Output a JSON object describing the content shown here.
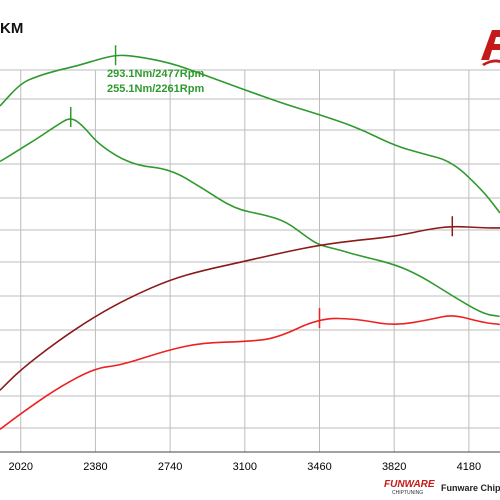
{
  "unit_label": "KM",
  "footer": {
    "company": "Funware Chip",
    "logo_word": "FUNWARE",
    "logo_sub": "CHIPTUNING"
  },
  "colors": {
    "torque_stock": "#2e9a2e",
    "torque_tuned": "#2e9a2e",
    "power_tuned": "#8b1a1a",
    "power_stock": "#ee2020",
    "grid": "#bdbdbd",
    "logo": "#c41a1a"
  },
  "chart_data": {
    "type": "line",
    "title": "",
    "xlabel": "",
    "ylabel": "KM",
    "xlim": [
      1920,
      4330
    ],
    "x_ticks": [
      2020,
      2380,
      2740,
      3100,
      3460,
      3820,
      4180
    ],
    "tick_labels": [
      "2020",
      "2380",
      "2740",
      "3100",
      "3460",
      "3820",
      "4180"
    ],
    "ylim": [
      0,
      100
    ],
    "grid": true,
    "annotations": [
      {
        "text": "293.1Nm/2477Rpm",
        "x": 2477,
        "series": 0
      },
      {
        "text": "255.1Nm/2261Rpm",
        "x": 2261,
        "series": 1
      }
    ],
    "series": [
      {
        "name": "",
        "color": "#2e9a2e",
        "x": [
          1920,
          2020,
          2100,
          2200,
          2300,
          2400,
          2477,
          2560,
          2740,
          2900,
          3100,
          3300,
          3460,
          3640,
          3820,
          3950,
          4100,
          4250,
          4330
        ],
        "y": [
          84,
          89.5,
          91.2,
          92.7,
          93.8,
          95.4,
          96.3,
          96.2,
          94.5,
          91.6,
          87.9,
          84.3,
          81.9,
          78.8,
          74.4,
          72.5,
          70.5,
          63.3,
          58
        ]
      },
      {
        "name": "",
        "color": "#2e9a2e",
        "x": [
          1920,
          2020,
          2100,
          2200,
          2261,
          2320,
          2400,
          2560,
          2740,
          2900,
          3050,
          3200,
          3300,
          3400,
          3460,
          3560,
          3640,
          3820,
          3950,
          4100,
          4250,
          4330
        ],
        "y": [
          70.5,
          73.6,
          76.1,
          79.5,
          81.3,
          79.2,
          74.4,
          69.6,
          68.7,
          63.9,
          59,
          57.5,
          55.9,
          52.1,
          50.2,
          49,
          47.8,
          45.6,
          42.7,
          37.9,
          33.5,
          32.9
        ]
      },
      {
        "name": "",
        "color": "#8b1a1a",
        "x": [
          1920,
          2020,
          2200,
          2380,
          2560,
          2740,
          2900,
          3100,
          3300,
          3460,
          3640,
          3820,
          4000,
          4100,
          4250,
          4330
        ],
        "y": [
          15,
          20,
          27,
          33,
          37.9,
          41.8,
          44.1,
          46.3,
          48.6,
          50.2,
          51.4,
          52.3,
          54.2,
          54.8,
          54.4,
          54.4
        ]
      },
      {
        "name": "",
        "color": "#ee2020",
        "x": [
          1920,
          2020,
          2200,
          2380,
          2500,
          2740,
          2900,
          3100,
          3250,
          3460,
          3640,
          3820,
          4000,
          4100,
          4250,
          4330
        ],
        "y": [
          5.5,
          9.3,
          15.6,
          20.4,
          21,
          24.9,
          26.5,
          26.8,
          27.5,
          32.5,
          32.3,
          30.6,
          32.2,
          33.4,
          31.4,
          31
        ]
      }
    ],
    "markers": [
      {
        "series": 0,
        "x": 2477
      },
      {
        "series": 1,
        "x": 2261
      },
      {
        "series": 2,
        "x": 4100
      },
      {
        "series": 3,
        "x": 3460
      }
    ]
  }
}
